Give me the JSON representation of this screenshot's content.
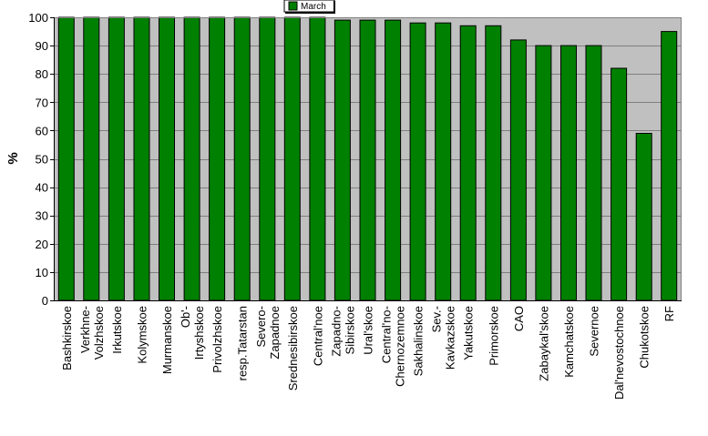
{
  "chart_data": {
    "type": "bar",
    "title": "",
    "xlabel": "",
    "ylabel": "%",
    "ylim": [
      0,
      100
    ],
    "yticks": [
      0,
      10,
      20,
      30,
      40,
      50,
      60,
      70,
      80,
      90,
      100
    ],
    "grid": true,
    "legend_position": "top-center",
    "categories": [
      "Bashkirskoe",
      "Verkhne-Volzhskoe",
      "Irkutskoe",
      "Kolymskoe",
      "Murmanskoe",
      "Ob'-Irtyshskoe",
      "Privolzhskoe",
      "resp.Tatarstan",
      "Severo-Zapadnoe",
      "Srednesibirskoe",
      "Central'noe",
      "Zapadno-Sibirskoe",
      "Ural'skoe",
      "Central'no-Chernozemnoe",
      "Sakhalinskoe",
      "Sev.-Kavkazskoe",
      "Yakutskoe",
      "Primorskoe",
      "CAO",
      "Zabaykal'skoe",
      "Kamchatskoe",
      "Severnoe",
      "Dal'nevostochnoe",
      "Chukotskoe",
      "RF"
    ],
    "category_lines": [
      [
        "Bashkirskoe"
      ],
      [
        "Verkhne-",
        "Volzhskoe"
      ],
      [
        "Irkutskoe"
      ],
      [
        "Kolymskoe"
      ],
      [
        "Murmanskoe"
      ],
      [
        "Ob'-",
        "Irtyshskoe"
      ],
      [
        "Privolzhskoe"
      ],
      [
        "resp.Tatarstan"
      ],
      [
        "Severo-",
        "Zapadnoe"
      ],
      [
        "Srednesibirskoe"
      ],
      [
        "Central'noe"
      ],
      [
        "Zapadno-",
        "Sibirskoe"
      ],
      [
        "Ural'skoe"
      ],
      [
        "Central'no-",
        "Chernozemnoe"
      ],
      [
        "Sakhalinskoe"
      ],
      [
        "Sev.-",
        "Kavkazskoe"
      ],
      [
        "Yakutskoe"
      ],
      [
        "Primorskoe"
      ],
      [
        "CAO"
      ],
      [
        "Zabaykal'skoe"
      ],
      [
        "Kamchatskoe"
      ],
      [
        "Severnoe"
      ],
      [
        "Dal'nevostochnoe"
      ],
      [
        "Chukotskoe"
      ],
      [
        "RF"
      ]
    ],
    "series": [
      {
        "name": "March",
        "color": "#008000",
        "values": [
          100,
          100,
          100,
          100,
          100,
          100,
          100,
          100,
          100,
          100,
          100,
          99,
          99,
          99,
          98,
          98,
          97,
          97,
          92,
          90,
          90,
          90,
          82,
          59,
          95
        ]
      }
    ],
    "colors": {
      "plot_background": "#c0c0c0",
      "gridline": "#7f7f7f",
      "bar": "#008000",
      "bar_edge": "#000000"
    }
  }
}
